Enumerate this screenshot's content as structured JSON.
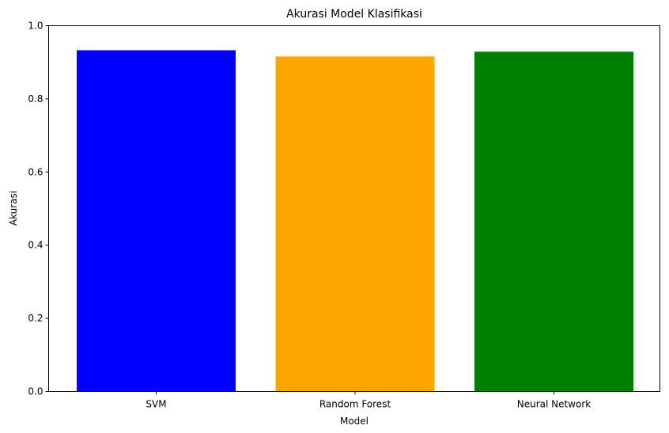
{
  "chart_data": {
    "type": "bar",
    "title": "Akurasi Model Klasifikasi",
    "xlabel": "Model",
    "ylabel": "Akurasi",
    "categories": [
      "SVM",
      "Random Forest",
      "Neural Network"
    ],
    "values": [
      0.933,
      0.916,
      0.929
    ],
    "colors": [
      "#0000ff",
      "#ffa500",
      "#008000"
    ],
    "ylim": [
      0,
      1.0
    ],
    "yticks": [
      "0.0",
      "0.2",
      "0.4",
      "0.6",
      "0.8",
      "1.0"
    ],
    "grid": false,
    "legend": "none"
  }
}
